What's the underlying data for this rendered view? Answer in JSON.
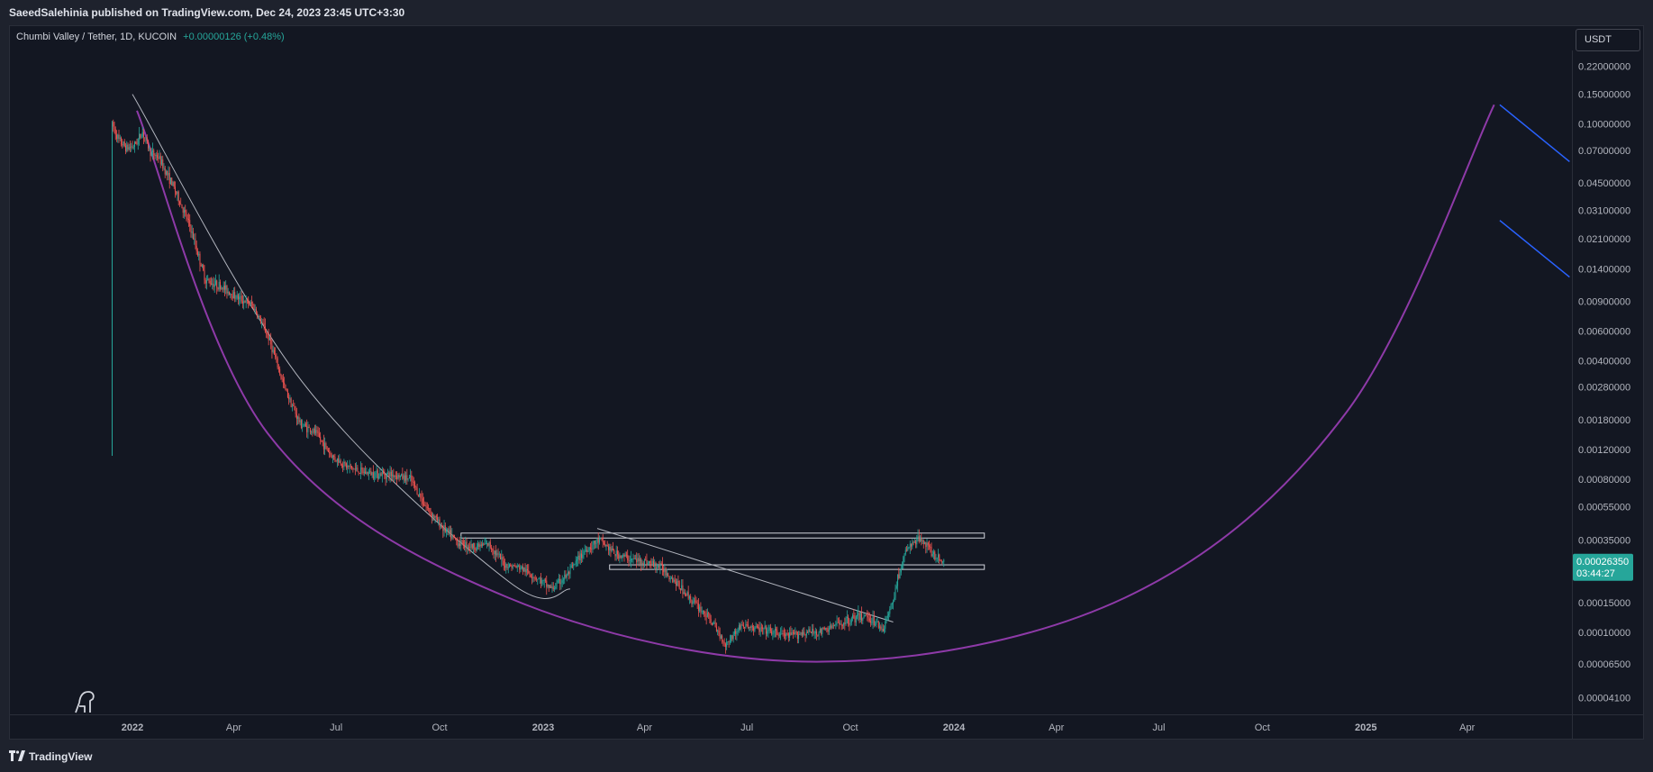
{
  "header": {
    "publisher_text": "SaeedSalehinia published on TradingView.com, Dec 24, 2023 23:45 UTC+3:30"
  },
  "symbol": {
    "title": "Chumbi Valley / Tether, 1D, KUCOIN",
    "change": "+0.00000126 (+0.48%)"
  },
  "currency_button": {
    "label": "USDT"
  },
  "footer": {
    "brand_icon": "tradingview-logo-icon",
    "brand_text": "TradingView"
  },
  "colors": {
    "background": "#131722",
    "up": "#26a69a",
    "down": "#ef5350",
    "curve": "#8e3aa8",
    "trendline": "#b2b5be",
    "projection": "#2962ff"
  },
  "chart_data": {
    "type": "candlestick",
    "symbol": "Chumbi Valley / Tether",
    "interval": "1D",
    "exchange": "KUCOIN",
    "scale": "log",
    "grid": false,
    "last_price": "0.00026350",
    "countdown": "03:44:27",
    "y_ticks": [
      "0.22000000",
      "0.15000000",
      "0.10000000",
      "0.07000000",
      "0.04500000",
      "0.03100000",
      "0.02100000",
      "0.01400000",
      "0.00900000",
      "0.00600000",
      "0.00400000",
      "0.00280000",
      "0.00180000",
      "0.00120000",
      "0.00080000",
      "0.00055000",
      "0.00035000",
      "0.00015000",
      "0.00010000",
      "0.00006500",
      "0.00004100"
    ],
    "x_ticks": [
      "2022",
      "Apr",
      "Jul",
      "Oct",
      "2023",
      "Apr",
      "Jul",
      "Oct",
      "2024",
      "Apr",
      "Jul",
      "Oct",
      "2025",
      "Apr"
    ],
    "y_range": [
      3.4e-05,
      0.3
    ],
    "price_path": [
      {
        "date": "2021-12-14",
        "price": 0.1
      },
      {
        "date": "2021-12-20",
        "price": 0.08
      },
      {
        "date": "2021-12-27",
        "price": 0.072
      },
      {
        "date": "2022-01-03",
        "price": 0.075
      },
      {
        "date": "2022-01-10",
        "price": 0.09
      },
      {
        "date": "2022-01-17",
        "price": 0.068
      },
      {
        "date": "2022-01-24",
        "price": 0.064
      },
      {
        "date": "2022-02-07",
        "price": 0.042
      },
      {
        "date": "2022-02-21",
        "price": 0.025
      },
      {
        "date": "2022-03-07",
        "price": 0.012
      },
      {
        "date": "2022-03-21",
        "price": 0.011
      },
      {
        "date": "2022-04-04",
        "price": 0.0095
      },
      {
        "date": "2022-04-18",
        "price": 0.0085
      },
      {
        "date": "2022-05-02",
        "price": 0.0055
      },
      {
        "date": "2022-05-16",
        "price": 0.0028
      },
      {
        "date": "2022-05-30",
        "price": 0.0017
      },
      {
        "date": "2022-06-13",
        "price": 0.0015
      },
      {
        "date": "2022-06-27",
        "price": 0.0011
      },
      {
        "date": "2022-07-11",
        "price": 0.00095
      },
      {
        "date": "2022-07-25",
        "price": 0.00088
      },
      {
        "date": "2022-08-08",
        "price": 0.00086
      },
      {
        "date": "2022-08-22",
        "price": 0.00085
      },
      {
        "date": "2022-09-05",
        "price": 0.0008
      },
      {
        "date": "2022-09-19",
        "price": 0.00055
      },
      {
        "date": "2022-10-03",
        "price": 0.00042
      },
      {
        "date": "2022-10-17",
        "price": 0.00034
      },
      {
        "date": "2022-10-31",
        "price": 0.00032
      },
      {
        "date": "2022-11-14",
        "price": 0.00033
      },
      {
        "date": "2022-11-28",
        "price": 0.00025
      },
      {
        "date": "2022-12-12",
        "price": 0.00024
      },
      {
        "date": "2022-12-26",
        "price": 0.00021
      },
      {
        "date": "2023-01-09",
        "price": 0.00018
      },
      {
        "date": "2023-01-23",
        "price": 0.00022
      },
      {
        "date": "2023-02-06",
        "price": 0.0003
      },
      {
        "date": "2023-02-20",
        "price": 0.00035
      },
      {
        "date": "2023-03-06",
        "price": 0.00029
      },
      {
        "date": "2023-03-20",
        "price": 0.00027
      },
      {
        "date": "2023-04-03",
        "price": 0.00026
      },
      {
        "date": "2023-04-17",
        "price": 0.00024
      },
      {
        "date": "2023-05-01",
        "price": 0.00019
      },
      {
        "date": "2023-05-15",
        "price": 0.00015
      },
      {
        "date": "2023-05-29",
        "price": 0.00012
      },
      {
        "date": "2023-06-12",
        "price": 8.5e-05
      },
      {
        "date": "2023-06-26",
        "price": 0.00011
      },
      {
        "date": "2023-07-10",
        "price": 0.000105
      },
      {
        "date": "2023-07-24",
        "price": 0.0001
      },
      {
        "date": "2023-08-07",
        "price": 9.5e-05
      },
      {
        "date": "2023-08-21",
        "price": 0.0001
      },
      {
        "date": "2023-09-04",
        "price": 0.0001
      },
      {
        "date": "2023-09-18",
        "price": 0.00011
      },
      {
        "date": "2023-10-02",
        "price": 0.00012
      },
      {
        "date": "2023-10-16",
        "price": 0.000125
      },
      {
        "date": "2023-10-30",
        "price": 0.000105
      },
      {
        "date": "2023-11-06",
        "price": 0.00014
      },
      {
        "date": "2023-11-13",
        "price": 0.00022
      },
      {
        "date": "2023-11-20",
        "price": 0.00031
      },
      {
        "date": "2023-11-27",
        "price": 0.00034
      },
      {
        "date": "2023-12-04",
        "price": 0.00036
      },
      {
        "date": "2023-12-11",
        "price": 0.0003
      },
      {
        "date": "2023-12-18",
        "price": 0.00027
      },
      {
        "date": "2023-12-24",
        "price": 0.0002635
      }
    ],
    "drawings": {
      "upper_zone": {
        "price_low": 0.00036,
        "price_high": 0.000385,
        "from": "2022-10-20",
        "to": "2024-01-28"
      },
      "lower_zone": {
        "price_low": 0.000235,
        "price_high": 0.00025,
        "from": "2023-03-01",
        "to": "2024-01-28"
      },
      "descending_trendline_1": [
        {
          "date": "2022-01-01",
          "price": 0.15
        },
        {
          "date": "2022-06-01",
          "price": 0.003
        },
        {
          "date": "2022-12-01",
          "price": 0.0002
        },
        {
          "date": "2023-01-25",
          "price": 0.00018
        }
      ],
      "descending_trendline_2": [
        {
          "date": "2023-02-18",
          "price": 0.00041
        },
        {
          "date": "2023-11-08",
          "price": 0.000115
        }
      ],
      "cup_curve": [
        {
          "date": "2022-01-05",
          "price": 0.12
        },
        {
          "date": "2022-05-01",
          "price": 0.0015
        },
        {
          "date": "2022-12-01",
          "price": 0.00016
        },
        {
          "date": "2023-09-01",
          "price": 6.7e-05
        },
        {
          "date": "2024-06-01",
          "price": 0.00016
        },
        {
          "date": "2024-12-15",
          "price": 0.002
        },
        {
          "date": "2025-04-25",
          "price": 0.13
        }
      ],
      "projection_lines": [
        [
          {
            "date": "2025-04-30",
            "price": 0.13
          },
          {
            "date": "2025-07-01",
            "price": 0.06
          }
        ],
        [
          {
            "date": "2025-04-30",
            "price": 0.027
          },
          {
            "date": "2025-07-01",
            "price": 0.0125
          }
        ]
      ],
      "vertical_marker": {
        "date": "2021-12-14",
        "price_top": 0.1,
        "price_bottom": 0.0011
      }
    }
  }
}
